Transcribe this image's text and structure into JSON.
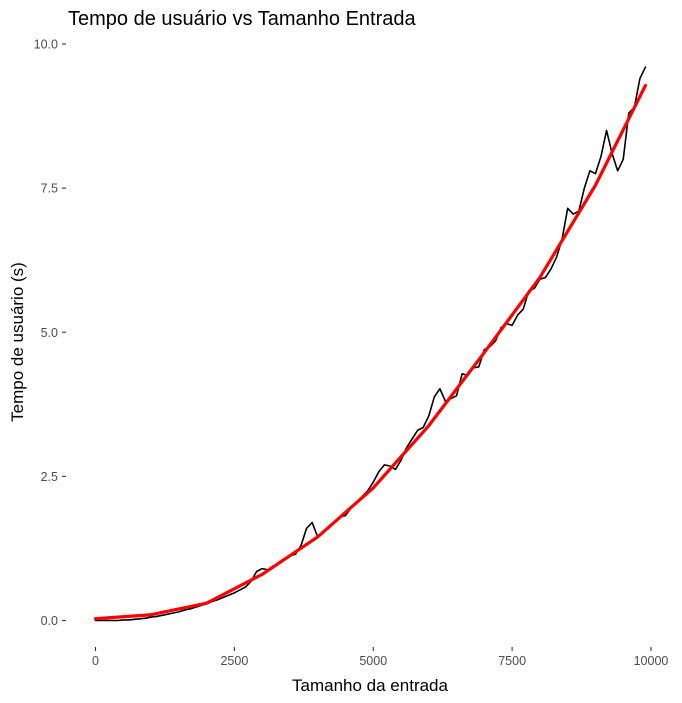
{
  "chart_data": {
    "type": "line",
    "title": "Tempo de usuário vs Tamanho Entrada",
    "xlabel": "Tamanho da entrada",
    "ylabel": "Tempo de usuário (s)",
    "xlim": [
      -250,
      10150
    ],
    "ylim": [
      -0.45,
      10.0
    ],
    "x_ticks": [
      0,
      2500,
      5000,
      7500,
      10000
    ],
    "x_tick_labels": [
      "0",
      "2500",
      "5000",
      "7500",
      "10000"
    ],
    "y_ticks": [
      0.0,
      2.5,
      5.0,
      7.5,
      10.0
    ],
    "y_tick_labels": [
      "0.0",
      "2.5",
      "5.0",
      "7.5",
      "10.0"
    ],
    "grid": false,
    "series": [
      {
        "color": "#000000",
        "x": [
          0,
          100,
          200,
          300,
          400,
          500,
          600,
          700,
          800,
          900,
          1000,
          1100,
          1200,
          1300,
          1400,
          1500,
          1600,
          1700,
          1800,
          1900,
          2000,
          2100,
          2200,
          2300,
          2400,
          2500,
          2600,
          2700,
          2800,
          2900,
          3000,
          3100,
          3200,
          3300,
          3400,
          3500,
          3600,
          3700,
          3800,
          3900,
          4000,
          4100,
          4200,
          4300,
          4400,
          4500,
          4600,
          4700,
          4800,
          4900,
          5000,
          5100,
          5200,
          5300,
          5400,
          5500,
          5600,
          5700,
          5800,
          5900,
          6000,
          6100,
          6200,
          6300,
          6400,
          6500,
          6600,
          6700,
          6800,
          6900,
          7000,
          7100,
          7200,
          7300,
          7400,
          7500,
          7600,
          7700,
          7800,
          7900,
          8000,
          8100,
          8200,
          8300,
          8400,
          8500,
          8600,
          8700,
          8800,
          8900,
          9000,
          9100,
          9200,
          9300,
          9400,
          9500,
          9600,
          9700,
          9800,
          9900
        ],
        "y": [
          0.0,
          0.0,
          0.0,
          0.0,
          0.0,
          0.01,
          0.01,
          0.02,
          0.03,
          0.04,
          0.06,
          0.07,
          0.09,
          0.11,
          0.13,
          0.15,
          0.18,
          0.2,
          0.23,
          0.26,
          0.29,
          0.33,
          0.36,
          0.4,
          0.44,
          0.48,
          0.53,
          0.58,
          0.68,
          0.85,
          0.9,
          0.88,
          0.92,
          1.0,
          1.05,
          1.12,
          1.15,
          1.3,
          1.6,
          1.7,
          1.45,
          1.55,
          1.6,
          1.7,
          1.8,
          1.82,
          1.95,
          2.05,
          2.15,
          2.25,
          2.4,
          2.58,
          2.7,
          2.68,
          2.62,
          2.78,
          3.0,
          3.15,
          3.3,
          3.35,
          3.55,
          3.88,
          4.02,
          3.8,
          3.85,
          3.9,
          4.28,
          4.25,
          4.38,
          4.4,
          4.7,
          4.75,
          4.85,
          5.08,
          5.15,
          5.12,
          5.3,
          5.4,
          5.72,
          5.76,
          5.92,
          5.95,
          6.1,
          6.3,
          6.62,
          7.15,
          7.05,
          7.1,
          7.5,
          7.8,
          7.75,
          8.05,
          8.5,
          8.1,
          7.8,
          8.0,
          8.8,
          8.9,
          9.4,
          9.6
        ]
      },
      {
        "color": "#ff0000",
        "x": [
          0,
          1000,
          2000,
          3000,
          4000,
          5000,
          6000,
          7000,
          8000,
          9000,
          9900
        ],
        "y": [
          0.03,
          0.1,
          0.3,
          0.8,
          1.45,
          2.3,
          3.38,
          4.65,
          5.95,
          7.55,
          9.28
        ]
      }
    ]
  }
}
